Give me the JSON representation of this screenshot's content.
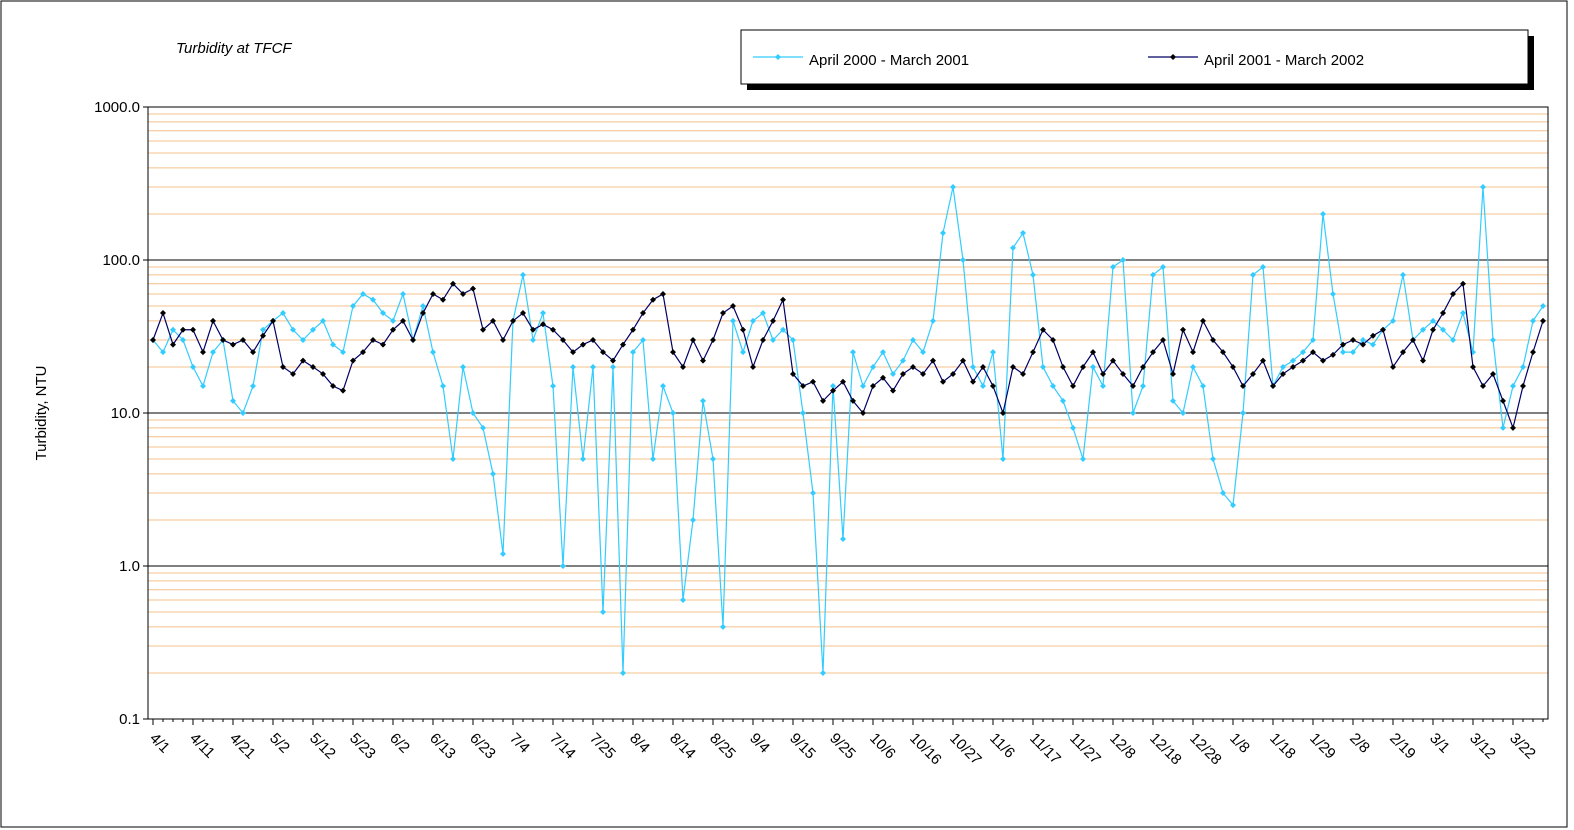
{
  "chart_data": {
    "type": "line",
    "title": "Turbidity at TFCF",
    "y_label": "Turbidity, NTU",
    "log_scale": true,
    "grid": true,
    "minor_grid": true,
    "ylim": [
      0.1,
      1000
    ],
    "yticks": [
      {
        "value": 0.1,
        "label": "0.1"
      },
      {
        "value": 1,
        "label": "1.0"
      },
      {
        "value": 10,
        "label": "10.0"
      },
      {
        "value": 100,
        "label": "100.0"
      },
      {
        "value": 1000,
        "label": "1000.0"
      }
    ],
    "categories": [
      "4/1",
      null,
      null,
      null,
      "4/11",
      null,
      null,
      null,
      "4/21",
      null,
      null,
      null,
      "5/2",
      null,
      null,
      null,
      "5/12",
      null,
      null,
      null,
      "5/23",
      null,
      null,
      null,
      "6/2",
      null,
      null,
      null,
      "6/13",
      null,
      null,
      null,
      "6/23",
      null,
      null,
      null,
      "7/4",
      null,
      null,
      null,
      "7/14",
      null,
      null,
      null,
      "7/25",
      null,
      null,
      null,
      "8/4",
      null,
      null,
      null,
      "8/14",
      null,
      null,
      null,
      "8/25",
      null,
      null,
      null,
      "9/4",
      null,
      null,
      null,
      "9/15",
      null,
      null,
      null,
      "9/25",
      null,
      null,
      null,
      "10/6",
      null,
      null,
      null,
      "10/16",
      null,
      null,
      null,
      "10/27",
      null,
      null,
      null,
      "11/6",
      null,
      null,
      null,
      "11/17",
      null,
      null,
      null,
      "11/27",
      null,
      null,
      null,
      "12/8",
      null,
      null,
      null,
      "12/18",
      null,
      null,
      null,
      "12/28",
      null,
      null,
      null,
      "1/8",
      null,
      null,
      null,
      "1/18",
      null,
      null,
      null,
      "1/29",
      null,
      null,
      null,
      "2/8",
      null,
      null,
      null,
      "2/19",
      null,
      null,
      null,
      "3/1",
      null,
      null,
      null,
      "3/12",
      null,
      null,
      null,
      "3/22",
      null,
      null,
      null
    ],
    "legend": "top-right",
    "series": [
      {
        "name": "April 2000 - March 2001",
        "color": "#33ccff",
        "values": [
          30,
          25,
          35,
          30,
          20,
          15,
          25,
          30,
          12,
          10,
          15,
          35,
          40,
          45,
          35,
          30,
          35,
          40,
          28,
          25,
          50,
          60,
          55,
          45,
          40,
          60,
          30,
          50,
          25,
          15,
          5,
          20,
          10,
          8,
          4,
          1.2,
          40,
          80,
          30,
          45,
          15,
          1,
          20,
          5,
          20,
          0.5,
          20,
          0.2,
          25,
          30,
          5,
          15,
          10,
          0.6,
          2,
          12,
          5,
          0.4,
          40,
          25,
          40,
          45,
          30,
          35,
          30,
          10,
          3,
          0.2,
          15,
          1.5,
          25,
          15,
          20,
          25,
          18,
          22,
          30,
          25,
          40,
          150,
          300,
          100,
          20,
          15,
          25,
          5,
          120,
          150,
          80,
          20,
          15,
          12,
          8,
          5,
          20,
          15,
          90,
          100,
          10,
          15,
          80,
          90,
          12,
          10,
          20,
          15,
          5,
          3,
          2.5,
          10,
          80,
          90,
          15,
          20,
          22,
          25,
          30,
          200,
          60,
          25,
          25,
          30,
          28,
          35,
          40,
          80,
          30,
          35,
          40,
          35,
          30,
          45,
          25,
          300,
          30,
          8,
          15,
          20,
          40,
          50
        ]
      },
      {
        "name": "April 2001 - March 2002",
        "color": "#000066",
        "values": [
          30,
          45,
          28,
          35,
          35,
          25,
          40,
          30,
          28,
          30,
          25,
          32,
          40,
          20,
          18,
          22,
          20,
          18,
          15,
          14,
          22,
          25,
          30,
          28,
          35,
          40,
          30,
          45,
          60,
          55,
          70,
          60,
          65,
          35,
          40,
          30,
          40,
          45,
          35,
          38,
          35,
          30,
          25,
          28,
          30,
          25,
          22,
          28,
          35,
          45,
          55,
          60,
          25,
          20,
          30,
          22,
          30,
          45,
          50,
          35,
          20,
          30,
          40,
          55,
          18,
          15,
          16,
          12,
          14,
          16,
          12,
          10,
          15,
          17,
          14,
          18,
          20,
          18,
          22,
          16,
          18,
          22,
          16,
          20,
          15,
          10,
          20,
          18,
          25,
          35,
          30,
          20,
          15,
          20,
          25,
          18,
          22,
          18,
          15,
          20,
          25,
          30,
          18,
          35,
          25,
          40,
          30,
          25,
          20,
          15,
          18,
          22,
          15,
          18,
          20,
          22,
          25,
          22,
          24,
          28,
          30,
          28,
          32,
          35,
          20,
          25,
          30,
          22,
          35,
          45,
          60,
          70,
          20,
          15,
          18,
          12,
          8,
          15,
          25,
          40
        ]
      }
    ]
  }
}
